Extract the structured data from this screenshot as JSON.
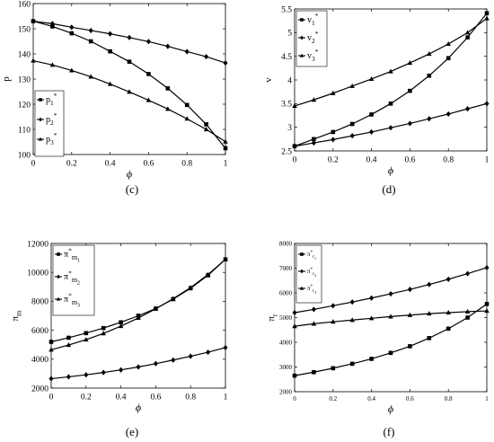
{
  "panel_labels": [
    "(c)",
    "(d)",
    "(e)",
    "(f)"
  ],
  "chart_data": [
    {
      "type": "line",
      "panel": "(c)",
      "xlabel": "ϕ",
      "ylabel": "p",
      "xlim": [
        0,
        1
      ],
      "ylim": [
        100,
        160
      ],
      "xticks": [
        0,
        0.2,
        0.4,
        0.6,
        0.8,
        1
      ],
      "xtick_labels": [
        "0",
        "0.2",
        "0.4",
        "0.6",
        "0.8",
        "1"
      ],
      "yticks": [
        100,
        110,
        120,
        130,
        140,
        150,
        160
      ],
      "ytick_labels": [
        "100",
        "110",
        "120",
        "130",
        "140",
        "150",
        "160"
      ],
      "grid": false,
      "legend_position": "bottom-left",
      "x": [
        0,
        0.1,
        0.2,
        0.3,
        0.4,
        0.5,
        0.6,
        0.7,
        0.8,
        0.9,
        1
      ],
      "series": [
        {
          "name": "p1*",
          "legend": {
            "base": "p",
            "sub": "1",
            "sup": "*"
          },
          "marker": "square",
          "values": [
            153.0,
            150.9,
            148.2,
            145.0,
            141.0,
            136.9,
            132.0,
            126.3,
            119.7,
            112.0,
            102.5
          ]
        },
        {
          "name": "p2*",
          "legend": {
            "base": "p",
            "sub": "2",
            "sup": "*"
          },
          "marker": "diamond",
          "values": [
            153.0,
            152.0,
            150.6,
            149.3,
            148.0,
            146.5,
            144.9,
            143.0,
            140.9,
            138.9,
            136.4
          ]
        },
        {
          "name": "p3*",
          "legend": {
            "base": "p",
            "sub": "3",
            "sup": "*"
          },
          "marker": "triangle",
          "values": [
            137.3,
            135.6,
            133.4,
            130.9,
            128.0,
            124.9,
            121.6,
            118.1,
            114.2,
            110.0,
            105.1
          ]
        }
      ]
    },
    {
      "type": "line",
      "panel": "(d)",
      "xlabel": "ϕ",
      "ylabel": "v",
      "xlim": [
        0,
        1
      ],
      "ylim": [
        2.5,
        5.5
      ],
      "xticks": [
        0,
        0.2,
        0.4,
        0.6,
        0.8,
        1
      ],
      "xtick_labels": [
        "0",
        "0.2",
        "0.4",
        "0.6",
        "0.8",
        "1"
      ],
      "yticks": [
        2.5,
        3,
        3.5,
        4,
        4.5,
        5,
        5.5
      ],
      "ytick_labels": [
        "2.5",
        "3",
        "3.5",
        "4",
        "4.5",
        "5",
        "5.5"
      ],
      "grid": false,
      "legend_position": "top-left",
      "x": [
        0,
        0.1,
        0.2,
        0.3,
        0.4,
        0.5,
        0.6,
        0.7,
        0.8,
        0.9,
        1
      ],
      "series": [
        {
          "name": "v1*",
          "legend": {
            "base": "v",
            "sub": "1",
            "sup": "*"
          },
          "marker": "square",
          "values": [
            2.6,
            2.75,
            2.9,
            3.07,
            3.27,
            3.5,
            3.77,
            4.09,
            4.46,
            4.9,
            5.41
          ]
        },
        {
          "name": "v2*",
          "legend": {
            "base": "v",
            "sub": "2",
            "sup": "*"
          },
          "marker": "diamond",
          "values": [
            2.6,
            2.67,
            2.74,
            2.82,
            2.9,
            2.99,
            3.08,
            3.18,
            3.28,
            3.39,
            3.5
          ]
        },
        {
          "name": "v3*",
          "legend": {
            "base": "v",
            "sub": "3",
            "sup": "*"
          },
          "marker": "triangle",
          "values": [
            3.45,
            3.58,
            3.72,
            3.87,
            4.02,
            4.18,
            4.36,
            4.55,
            4.76,
            5.0,
            5.3
          ]
        }
      ]
    },
    {
      "type": "line",
      "panel": "(e)",
      "xlabel": "ϕ",
      "ylabel": "π_m",
      "xlim": [
        0,
        1
      ],
      "ylim": [
        2000,
        12000
      ],
      "xticks": [
        0,
        0.2,
        0.4,
        0.6,
        0.8,
        1
      ],
      "xtick_labels": [
        "0",
        "0.2",
        "0.4",
        "0.6",
        "0.8",
        "1"
      ],
      "yticks": [
        2000,
        4000,
        6000,
        8000,
        10000,
        12000
      ],
      "ytick_labels": [
        "2000",
        "4000",
        "6000",
        "8000",
        "10000",
        "12000"
      ],
      "grid": false,
      "legend_position": "top-left",
      "x": [
        0,
        0.1,
        0.2,
        0.3,
        0.4,
        0.5,
        0.6,
        0.7,
        0.8,
        0.9,
        1
      ],
      "series": [
        {
          "name": "π*m1",
          "legend": {
            "base": "π",
            "sup": "*",
            "sub": "m",
            "subsub": "1"
          },
          "marker": "square",
          "values": [
            5200,
            5480,
            5800,
            6150,
            6550,
            7000,
            7500,
            8150,
            8900,
            9800,
            10900
          ]
        },
        {
          "name": "π*m2",
          "legend": {
            "base": "π",
            "sup": "*",
            "sub": "m",
            "subsub": "2"
          },
          "marker": "diamond",
          "values": [
            2650,
            2780,
            2920,
            3080,
            3260,
            3460,
            3690,
            3940,
            4200,
            4480,
            4800
          ]
        },
        {
          "name": "π*m3",
          "legend": {
            "base": "π",
            "sup": "*",
            "sub": "m",
            "subsub": "3"
          },
          "marker": "triangle",
          "values": [
            4650,
            4980,
            5350,
            5780,
            6280,
            6850,
            7480,
            8180,
            8950,
            9850,
            10900
          ]
        }
      ]
    },
    {
      "type": "line",
      "panel": "(f)",
      "xlabel": "ϕ",
      "ylabel": "π_r",
      "xlim": [
        0,
        1
      ],
      "ylim": [
        2000,
        8000
      ],
      "xticks": [
        0,
        0.2,
        0.4,
        0.6,
        0.8,
        1
      ],
      "xtick_labels": [
        "0",
        "0.2",
        "0.4",
        "0.6",
        "0.8",
        "1"
      ],
      "yticks": [
        2000,
        3000,
        4000,
        5000,
        6000,
        7000,
        8000
      ],
      "ytick_labels": [
        "2000",
        "3000",
        "4000",
        "5000",
        "6000",
        "7000",
        "8000"
      ],
      "grid": false,
      "legend_position": "top-left",
      "x": [
        0,
        0.1,
        0.2,
        0.3,
        0.4,
        0.5,
        0.6,
        0.7,
        0.8,
        0.9,
        1
      ],
      "series": [
        {
          "name": "π*r1",
          "legend": {
            "base": "π",
            "sup": "*",
            "sub": "r",
            "subsub": "1"
          },
          "marker": "square",
          "values": [
            2650,
            2790,
            2950,
            3130,
            3330,
            3570,
            3840,
            4170,
            4550,
            5000,
            5550
          ]
        },
        {
          "name": "π*r2",
          "legend": {
            "base": "π",
            "sup": "*",
            "sub": "r",
            "subsub": "2"
          },
          "marker": "diamond",
          "values": [
            5200,
            5330,
            5480,
            5630,
            5790,
            5960,
            6140,
            6340,
            6550,
            6780,
            7020
          ]
        },
        {
          "name": "π*r3",
          "legend": {
            "base": "π",
            "sup": "*",
            "sub": "r",
            "subsub": "3"
          },
          "marker": "triangle",
          "values": [
            4650,
            4750,
            4830,
            4900,
            4970,
            5040,
            5100,
            5160,
            5200,
            5240,
            5270
          ]
        }
      ]
    }
  ]
}
